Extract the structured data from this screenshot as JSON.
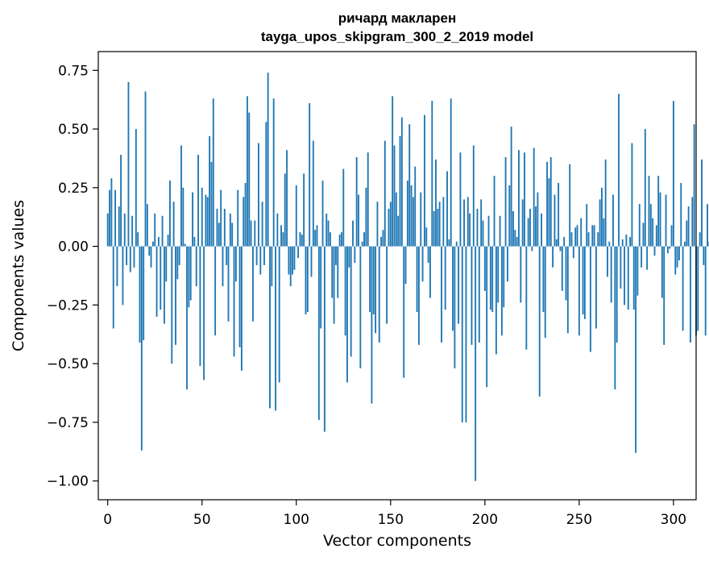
{
  "chart_data": {
    "type": "bar",
    "title": "ричард макларен",
    "subtitle": "tayga_upos_skipgram_300_2_2019 model",
    "xlabel": "Vector components",
    "ylabel": "Components values",
    "xlim": [
      -5,
      312
    ],
    "ylim": [
      -1.08,
      0.83
    ],
    "x_ticks": [
      0,
      50,
      100,
      150,
      200,
      250,
      300
    ],
    "x_tick_labels": [
      "0",
      "50",
      "100",
      "150",
      "200",
      "250",
      "300"
    ],
    "y_ticks": [
      0.75,
      0.5,
      0.25,
      0.0,
      -0.25,
      -0.5,
      -0.75,
      -1.0
    ],
    "y_tick_labels": [
      "0.75",
      "0.50",
      "0.25",
      "0.00",
      "−0.25",
      "−0.50",
      "−0.75",
      "−1.00"
    ],
    "grid": false,
    "bar_color": "#1f77b4",
    "values": [
      0.14,
      0.24,
      0.29,
      -0.35,
      0.24,
      -0.17,
      0.17,
      0.39,
      -0.25,
      0.14,
      -0.08,
      0.7,
      -0.11,
      0.13,
      -0.09,
      0.5,
      0.06,
      -0.41,
      -0.87,
      -0.4,
      0.66,
      0.18,
      -0.04,
      -0.09,
      0.02,
      0.14,
      -0.3,
      0.04,
      -0.27,
      0.13,
      -0.33,
      -0.15,
      0.05,
      0.28,
      -0.5,
      0.19,
      -0.42,
      -0.14,
      -0.08,
      0.43,
      0.25,
      0.01,
      -0.61,
      -0.26,
      -0.23,
      0.23,
      0.04,
      -0.17,
      0.39,
      -0.51,
      0.25,
      -0.57,
      0.22,
      0.21,
      0.47,
      0.36,
      0.63,
      -0.38,
      0.16,
      0.1,
      0.24,
      -0.17,
      0.16,
      -0.08,
      -0.32,
      0.14,
      0.1,
      -0.47,
      -0.15,
      0.24,
      -0.43,
      -0.53,
      0.21,
      0.27,
      0.64,
      0.57,
      0.11,
      -0.32,
      0.11,
      -0.08,
      0.44,
      -0.12,
      0.19,
      -0.08,
      0.53,
      0.74,
      -0.69,
      -0.17,
      0.63,
      -0.7,
      0.14,
      -0.58,
      0.09,
      0.06,
      0.31,
      0.41,
      -0.12,
      -0.17,
      -0.12,
      -0.1,
      0.26,
      -0.05,
      0.06,
      0.05,
      0.31,
      -0.29,
      -0.28,
      0.61,
      -0.13,
      0.45,
      0.07,
      0.09,
      -0.74,
      -0.35,
      0.28,
      -0.79,
      0.14,
      0.11,
      0.06,
      -0.22,
      -0.33,
      -0.08,
      -0.22,
      0.05,
      0.06,
      0.33,
      -0.38,
      -0.58,
      -0.09,
      -0.47,
      0.11,
      -0.07,
      0.38,
      0.22,
      -0.52,
      0.02,
      0.06,
      0.25,
      0.4,
      -0.28,
      -0.67,
      -0.29,
      -0.37,
      0.19,
      -0.41,
      0.04,
      0.07,
      0.45,
      -0.33,
      0.16,
      0.19,
      0.64,
      0.43,
      0.23,
      0.13,
      0.47,
      0.55,
      -0.56,
      -0.16,
      0.28,
      0.52,
      0.26,
      0.21,
      0.34,
      -0.28,
      -0.42,
      0.23,
      -0.15,
      0.56,
      0.08,
      -0.07,
      -0.22,
      0.62,
      0.15,
      0.37,
      0.16,
      0.19,
      -0.41,
      0.21,
      -0.27,
      0.32,
      0.03,
      0.63,
      -0.36,
      -0.52,
      0.02,
      -0.33,
      0.4,
      -0.75,
      0.2,
      -0.75,
      0.21,
      0.14,
      -0.42,
      0.43,
      -1.0,
      0.16,
      -0.41,
      0.2,
      0.11,
      -0.19,
      -0.6,
      0.13,
      -0.27,
      -0.28,
      0.3,
      -0.46,
      -0.24,
      0.13,
      -0.38,
      -0.26,
      0.38,
      -0.15,
      0.26,
      0.51,
      0.15,
      0.07,
      0.04,
      0.41,
      -0.24,
      0.2,
      0.4,
      -0.44,
      0.12,
      0.16,
      -0.02,
      0.42,
      0.17,
      0.23,
      -0.64,
      0.14,
      -0.28,
      -0.39,
      0.36,
      0.29,
      0.38,
      -0.09,
      0.22,
      0.03,
      0.27,
      -0.02,
      -0.19,
      0.04,
      -0.23,
      -0.37,
      0.35,
      0.06,
      -0.05,
      0.08,
      0.09,
      -0.38,
      0.12,
      -0.29,
      -0.31,
      0.18,
      0.06,
      -0.45,
      0.09,
      0.09,
      -0.35,
      0.06,
      0.2,
      0.25,
      0.12,
      0.37,
      -0.13,
      0.02,
      -0.24,
      0.22,
      -0.61,
      -0.41,
      0.65,
      -0.18,
      0.03,
      -0.25,
      0.05,
      -0.27,
      0.04,
      0.44,
      -0.27,
      -0.88,
      -0.21,
      0.18,
      -0.09,
      0.1,
      0.5,
      -0.1,
      0.3,
      0.18,
      0.12,
      -0.04,
      0.09,
      0.3,
      0.23,
      -0.22,
      -0.42,
      0.22,
      -0.03,
      -0.01,
      0.09,
      0.62,
      -0.12,
      -0.09,
      -0.06,
      0.27,
      -0.36,
      0.02,
      0.11,
      0.17,
      -0.41,
      0.21,
      0.52,
      -0.38,
      -0.36,
      0.06,
      0.37,
      -0.08,
      -0.38,
      0.18,
      0.02
    ]
  }
}
